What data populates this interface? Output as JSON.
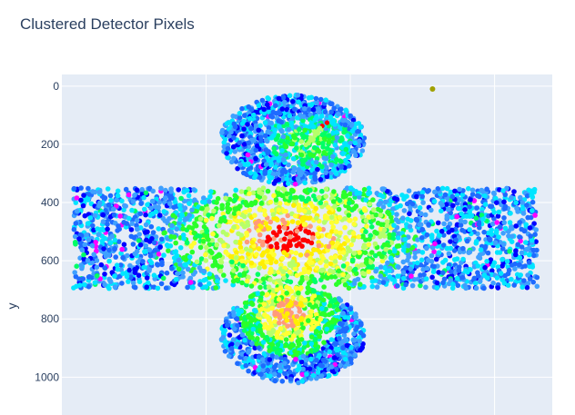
{
  "chart_data": {
    "type": "scatter",
    "title": "Clustered Detector Pixels",
    "xlabel": "",
    "ylabel": "y",
    "y_reversed": true,
    "xlim": [
      0,
      1700
    ],
    "ylim": [
      1130,
      -40
    ],
    "y_ticks": [
      0,
      200,
      400,
      600,
      800,
      1000
    ],
    "y_tick_labels": [
      "0",
      "200",
      "400",
      "600",
      "800",
      "1000"
    ],
    "x_gridlines": [
      500,
      1000,
      1500
    ],
    "grid": true,
    "legend": "none",
    "colors": {
      "plot_bg": "#e5ecf6",
      "grid": "#ffffff",
      "palette": [
        "#0000ff",
        "#1e6bff",
        "#3fa0ff",
        "#00e5ff",
        "#00ff66",
        "#2aff2a",
        "#b6ff6a",
        "#ffff33",
        "#ffee00",
        "#ff9a7a",
        "#ff0000",
        "#ff00ff"
      ]
    },
    "regions": [
      {
        "name": "top-ellipse",
        "shape": "ellipse",
        "center": [
          800,
          185
        ],
        "radii": [
          250,
          155
        ],
        "level": "low-mid",
        "hot_spot": [
          910,
          120
        ]
      },
      {
        "name": "central-band",
        "shape": "rectangle",
        "x_range": [
          40,
          1650
        ],
        "y_range": [
          350,
          695
        ],
        "level": "peak",
        "hot_center": [
          790,
          520
        ]
      },
      {
        "name": "bottom-ellipse",
        "shape": "ellipse",
        "center": [
          800,
          855
        ],
        "radii": [
          250,
          165
        ],
        "level": "mid",
        "hot_center": [
          790,
          780
        ]
      }
    ],
    "outliers": [
      {
        "x": 1285,
        "y": 10
      }
    ]
  }
}
